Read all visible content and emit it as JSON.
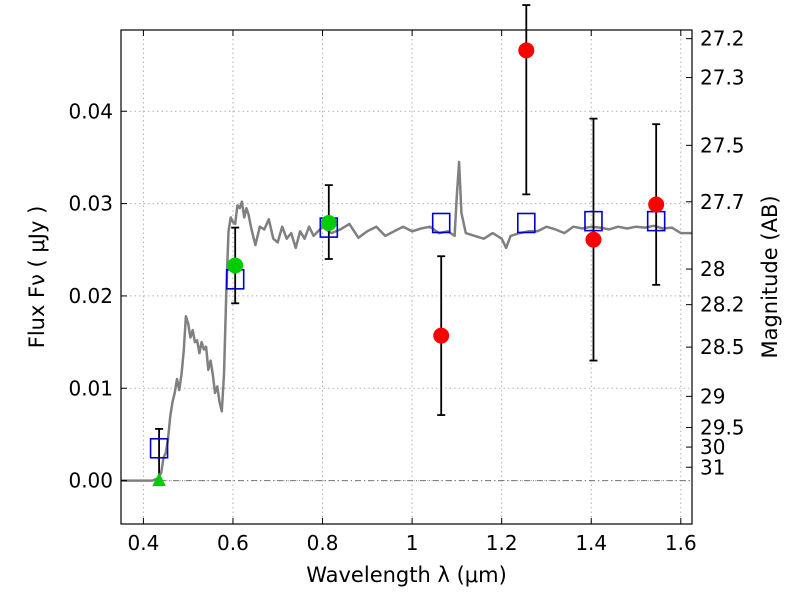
{
  "chart_data": {
    "type": "scatter",
    "xlabel": "Wavelength  λ (μm)",
    "ylabel": "Flux  Fν  ( μJy )",
    "ylabel_right": "Magnitude (AB)",
    "xlim": [
      0.35,
      1.625
    ],
    "ylim": [
      -0.0047,
      0.0488
    ],
    "grid": true,
    "x_ticks": [
      0.4,
      0.6,
      0.8,
      1.0,
      1.2,
      1.4,
      1.6
    ],
    "x_tick_labels": [
      "0.4",
      "0.6",
      "0.8",
      "1",
      "1.2",
      "1.4",
      "1.6"
    ],
    "y_ticks": [
      0.0,
      0.01,
      0.02,
      0.03,
      0.04
    ],
    "y_tick_labels": [
      "0.00",
      "0.01",
      "0.02",
      "0.03",
      "0.04"
    ],
    "right_ticks": [
      {
        "label": "27.2",
        "mag": 27.2
      },
      {
        "label": "27.3",
        "mag": 27.3
      },
      {
        "label": "27.5",
        "mag": 27.5
      },
      {
        "label": "27.7",
        "mag": 27.7
      },
      {
        "label": "28",
        "mag": 28.0
      },
      {
        "label": "28.2",
        "mag": 28.2
      },
      {
        "label": "28.5",
        "mag": 28.5
      },
      {
        "label": "29",
        "mag": 29.0
      },
      {
        "label": "29.5",
        "mag": 29.5
      },
      {
        "label": "30",
        "mag": 30.0
      },
      {
        "label": "31",
        "mag": 31.0
      }
    ],
    "colors": {
      "model": "#808080",
      "photometry_red": "#ff0000",
      "photometry_green": "#00cc00",
      "model_squares": "#0000cc",
      "errorbar": "#000000"
    },
    "model_spectrum": {
      "x": [
        0.35,
        0.42,
        0.43,
        0.435,
        0.44,
        0.445,
        0.45,
        0.455,
        0.46,
        0.465,
        0.47,
        0.475,
        0.48,
        0.485,
        0.49,
        0.495,
        0.5,
        0.505,
        0.51,
        0.515,
        0.52,
        0.525,
        0.53,
        0.535,
        0.54,
        0.545,
        0.55,
        0.555,
        0.56,
        0.565,
        0.57,
        0.575,
        0.58,
        0.585,
        0.59,
        0.595,
        0.6,
        0.605,
        0.61,
        0.615,
        0.62,
        0.625,
        0.63,
        0.635,
        0.64,
        0.645,
        0.65,
        0.655,
        0.66,
        0.67,
        0.68,
        0.69,
        0.7,
        0.71,
        0.72,
        0.73,
        0.74,
        0.75,
        0.76,
        0.77,
        0.78,
        0.8,
        0.82,
        0.84,
        0.86,
        0.88,
        0.9,
        0.92,
        0.94,
        0.96,
        0.98,
        1.0,
        1.02,
        1.04,
        1.06,
        1.08,
        1.095,
        1.1,
        1.105,
        1.11,
        1.12,
        1.14,
        1.16,
        1.18,
        1.2,
        1.21,
        1.22,
        1.24,
        1.26,
        1.28,
        1.3,
        1.32,
        1.34,
        1.36,
        1.38,
        1.4,
        1.42,
        1.44,
        1.46,
        1.48,
        1.5,
        1.52,
        1.54,
        1.56,
        1.58,
        1.6,
        1.625
      ],
      "y": [
        0.0,
        0.0,
        0.0002,
        0.0004,
        0.0009,
        0.0025,
        0.003,
        0.0045,
        0.007,
        0.0085,
        0.0095,
        0.011,
        0.0098,
        0.0115,
        0.014,
        0.0178,
        0.017,
        0.0155,
        0.0163,
        0.015,
        0.0152,
        0.0138,
        0.015,
        0.0142,
        0.0145,
        0.012,
        0.013,
        0.0115,
        0.0095,
        0.0102,
        0.0085,
        0.0075,
        0.0115,
        0.02,
        0.027,
        0.0285,
        0.028,
        0.0278,
        0.0298,
        0.0295,
        0.0302,
        0.0285,
        0.0295,
        0.0288,
        0.0275,
        0.0265,
        0.0255,
        0.0265,
        0.0275,
        0.0272,
        0.0283,
        0.0262,
        0.0258,
        0.0275,
        0.0262,
        0.0268,
        0.0252,
        0.027,
        0.0262,
        0.0275,
        0.0265,
        0.0275,
        0.0268,
        0.0272,
        0.0278,
        0.0263,
        0.027,
        0.0275,
        0.0265,
        0.027,
        0.0275,
        0.027,
        0.0273,
        0.0275,
        0.0268,
        0.027,
        0.0265,
        0.031,
        0.0345,
        0.029,
        0.0268,
        0.0265,
        0.0262,
        0.0268,
        0.0262,
        0.0252,
        0.0265,
        0.0268,
        0.027,
        0.027,
        0.0275,
        0.0272,
        0.0268,
        0.0275,
        0.0273,
        0.0275,
        0.0274,
        0.0272,
        0.0275,
        0.0273,
        0.0275,
        0.0274,
        0.0276,
        0.0273,
        0.0274,
        0.0268,
        0.0268
      ]
    },
    "observed_points": [
      {
        "x": 0.605,
        "y": 0.0233,
        "yerr_lo": 0.0041,
        "yerr_hi": 0.0041,
        "color": "green",
        "marker": "circle"
      },
      {
        "x": 0.814,
        "y": 0.0279,
        "yerr_lo": 0.0039,
        "yerr_hi": 0.0041,
        "color": "green",
        "marker": "circle"
      },
      {
        "x": 1.065,
        "y": 0.0157,
        "yerr_lo": 0.0086,
        "yerr_hi": 0.0086,
        "color": "red",
        "marker": "circle"
      },
      {
        "x": 1.255,
        "y": 0.0466,
        "yerr_lo": 0.0156,
        "yerr_hi": 0.0049,
        "color": "red",
        "marker": "circle"
      },
      {
        "x": 1.405,
        "y": 0.0261,
        "yerr_lo": 0.0131,
        "yerr_hi": 0.0131,
        "color": "red",
        "marker": "circle"
      },
      {
        "x": 1.545,
        "y": 0.0299,
        "yerr_lo": 0.0087,
        "yerr_hi": 0.0087,
        "color": "red",
        "marker": "circle"
      },
      {
        "x": 0.435,
        "y": 0.0,
        "yerr_lo": 0.0,
        "yerr_hi": 0.0056,
        "color": "green",
        "marker": "triangle"
      }
    ],
    "model_photometry": {
      "x": [
        0.435,
        0.605,
        0.814,
        1.065,
        1.255,
        1.405,
        1.545
      ],
      "y": [
        0.0035,
        0.0218,
        0.0274,
        0.0279,
        0.0279,
        0.0281,
        0.0281
      ]
    }
  }
}
